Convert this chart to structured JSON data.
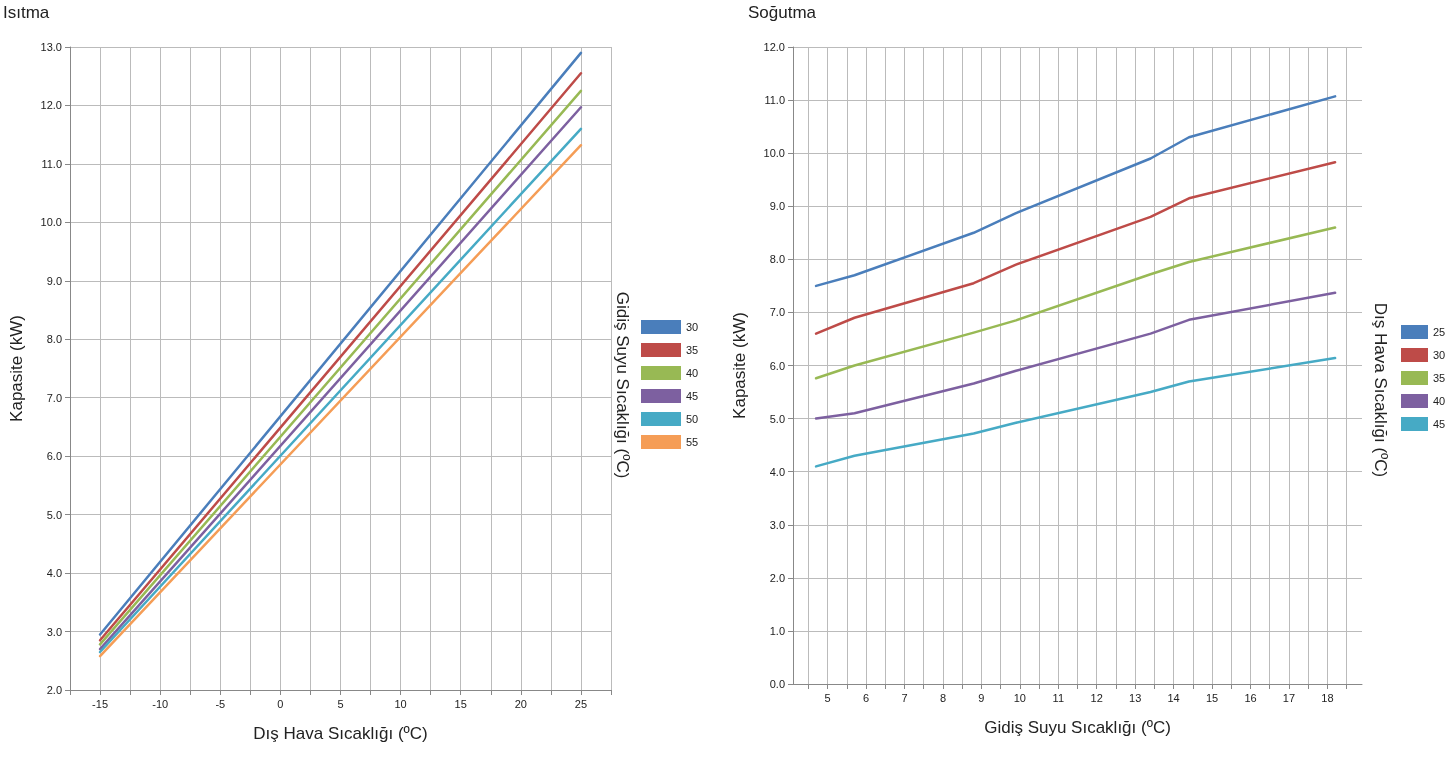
{
  "chart_data": [
    {
      "type": "line",
      "title": "Isıtma",
      "xlabel": "Dış Hava Sıcaklığı (ºC)",
      "ylabel": "Kapasite (kW)",
      "legend_title": "Gidiş Suyu Sıcaklığı (ºC)",
      "legend": "right",
      "grid": true,
      "marker": "none",
      "line_style": "solid",
      "xlim": [
        -17.5,
        27.5
      ],
      "xticks": [
        {
          "value": -17.5,
          "label": null
        },
        -15,
        {
          "value": -12.5,
          "label": null
        },
        -10,
        {
          "value": -7.5,
          "label": null
        },
        -5,
        {
          "value": -2.5,
          "label": null
        },
        0,
        {
          "value": 2.5,
          "label": null
        },
        5,
        {
          "value": 7.5,
          "label": null
        },
        10,
        {
          "value": 12.5,
          "label": null
        },
        15,
        {
          "value": 17.5,
          "label": null
        },
        20,
        {
          "value": 22.5,
          "label": null
        },
        25,
        {
          "value": 27.5,
          "label": null
        }
      ],
      "ylim": [
        2,
        13
      ],
      "yticks": [
        {
          "value": 2,
          "label": "2.0"
        },
        {
          "value": 3,
          "label": "3.0"
        },
        {
          "value": 4,
          "label": "4.0"
        },
        {
          "value": 5,
          "label": "5.0"
        },
        {
          "value": 6,
          "label": "6.0"
        },
        {
          "value": 7,
          "label": "7.0"
        },
        {
          "value": 8,
          "label": "8.0"
        },
        {
          "value": 9,
          "label": "9.0"
        },
        {
          "value": 10,
          "label": "10.0"
        },
        {
          "value": 11,
          "label": "11.0"
        },
        {
          "value": 12,
          "label": "12.0"
        },
        {
          "value": 13,
          "label": "13.0"
        }
      ],
      "x": [
        -15,
        25
      ],
      "series": [
        {
          "name": "30",
          "color": "#4a7ebb",
          "values": [
            2.95,
            12.9
          ]
        },
        {
          "name": "35",
          "color": "#be4b48",
          "values": [
            2.85,
            12.55
          ]
        },
        {
          "name": "40",
          "color": "#98b954",
          "values": [
            2.78,
            12.25
          ]
        },
        {
          "name": "45",
          "color": "#7d60a0",
          "values": [
            2.7,
            11.97
          ]
        },
        {
          "name": "50",
          "color": "#46aac5",
          "values": [
            2.65,
            11.6
          ]
        },
        {
          "name": "55",
          "color": "#f59d56",
          "values": [
            2.58,
            11.32
          ]
        }
      ]
    },
    {
      "type": "line",
      "title": "Soğutma",
      "xlabel": "Gidiş Suyu Sıcaklığı (ºC)",
      "ylabel": "Kapasite (kW)",
      "legend_title": "Dış Hava Sıcaklığı (ºC)",
      "legend": "right",
      "grid": true,
      "marker": "none",
      "line_style": "solid",
      "xlim": [
        4.1,
        18.9
      ],
      "xticks": [
        {
          "value": 4.5,
          "label": null
        },
        5,
        {
          "value": 5.5,
          "label": null
        },
        6,
        {
          "value": 6.5,
          "label": null
        },
        7,
        {
          "value": 7.5,
          "label": null
        },
        8,
        {
          "value": 8.5,
          "label": null
        },
        9,
        {
          "value": 9.5,
          "label": null
        },
        10,
        {
          "value": 10.5,
          "label": null
        },
        11,
        {
          "value": 11.5,
          "label": null
        },
        12,
        {
          "value": 12.5,
          "label": null
        },
        13,
        {
          "value": 13.5,
          "label": null
        },
        14,
        {
          "value": 14.5,
          "label": null
        },
        15,
        {
          "value": 15.5,
          "label": null
        },
        16,
        {
          "value": 16.5,
          "label": null
        },
        17,
        {
          "value": 17.5,
          "label": null
        },
        18,
        {
          "value": 18.5,
          "label": null
        }
      ],
      "ylim": [
        0,
        12
      ],
      "yticks": [
        {
          "value": 0,
          "label": "0.0"
        },
        {
          "value": 1,
          "label": "1.0"
        },
        {
          "value": 2,
          "label": "2.0"
        },
        {
          "value": 3,
          "label": "3.0"
        },
        {
          "value": 4,
          "label": "4.0"
        },
        {
          "value": 5,
          "label": "5.0"
        },
        {
          "value": 6,
          "label": "6.0"
        },
        {
          "value": 7,
          "label": "7.0"
        },
        {
          "value": 8,
          "label": "8.0"
        },
        {
          "value": 9,
          "label": "9.0"
        },
        {
          "value": 10,
          "label": "10.0"
        },
        {
          "value": 11,
          "label": "11.0"
        },
        {
          "value": 12,
          "label": "12.0"
        }
      ],
      "x": [
        4.7,
        5.7,
        8.8,
        9.9,
        13.4,
        14.4,
        18.2
      ],
      "series": [
        {
          "name": "25",
          "color": "#4a7ebb",
          "values": [
            7.5,
            7.7,
            8.5,
            8.87,
            9.9,
            10.3,
            11.07
          ]
        },
        {
          "name": "30",
          "color": "#be4b48",
          "values": [
            6.6,
            6.9,
            7.55,
            7.9,
            8.8,
            9.15,
            9.83
          ]
        },
        {
          "name": "35",
          "color": "#98b954",
          "values": [
            5.76,
            6.0,
            6.62,
            6.85,
            7.72,
            7.95,
            8.6
          ]
        },
        {
          "name": "40",
          "color": "#7d60a0",
          "values": [
            5.0,
            5.1,
            5.66,
            5.9,
            6.6,
            6.86,
            7.37
          ]
        },
        {
          "name": "45",
          "color": "#46aac5",
          "values": [
            4.1,
            4.3,
            4.72,
            4.92,
            5.5,
            5.7,
            6.14
          ]
        }
      ]
    }
  ]
}
